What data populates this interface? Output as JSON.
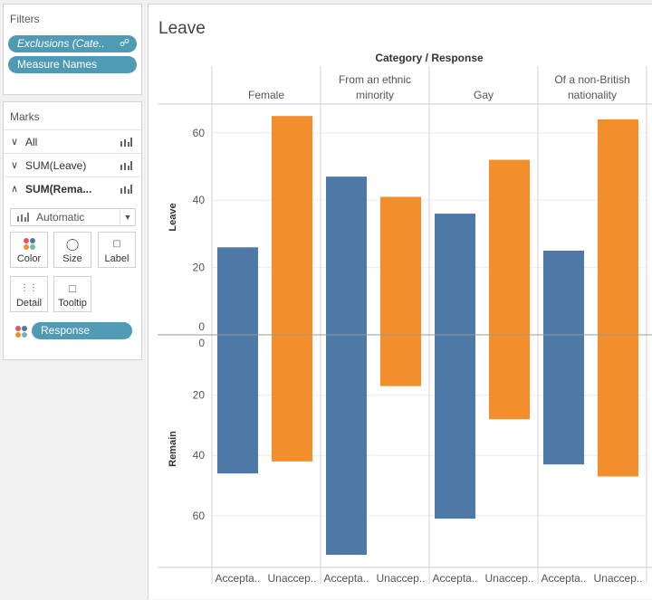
{
  "filters": {
    "title": "Filters",
    "pills": [
      {
        "label": "Exclusions (Cate..",
        "icon": "link-icon"
      },
      {
        "label": "Measure Names"
      }
    ]
  },
  "marks": {
    "title": "Marks",
    "rows": [
      {
        "label": "All",
        "expanded": false
      },
      {
        "label": "SUM(Leave)",
        "expanded": false
      },
      {
        "label": "SUM(Rema...",
        "expanded": true
      }
    ],
    "mark_type": "Automatic",
    "cards": [
      "Color",
      "Size",
      "Label",
      "Detail",
      "Tooltip"
    ],
    "color_pill": "Response"
  },
  "colors": {
    "acceptable": "#4e79a7",
    "unacceptable": "#f28e2b",
    "pill": "#4f9bb5"
  },
  "chart_data": {
    "type": "bar",
    "title": "Leave",
    "column_header": "Category / Response",
    "panes": [
      {
        "label_lines": [
          "Female"
        ]
      },
      {
        "label_lines": [
          "From an ethnic",
          "minority"
        ]
      },
      {
        "label_lines": [
          "Gay"
        ]
      },
      {
        "label_lines": [
          "Of a non-British",
          "nationality"
        ]
      }
    ],
    "x_labels": [
      "Accepta..",
      "Unaccep.."
    ],
    "leave_axis": {
      "title": "Leave",
      "range": [
        0,
        70
      ],
      "ticks": [
        "0",
        "20",
        "40",
        "60"
      ]
    },
    "remain_axis": {
      "title": "Remain",
      "range": [
        0,
        75
      ],
      "ticks": [
        "0",
        "20",
        "40",
        "60"
      ]
    },
    "series": [
      {
        "name": "Acceptable",
        "leave": [
          26,
          47,
          36,
          25
        ],
        "remain": [
          46,
          73,
          61,
          43
        ]
      },
      {
        "name": "Unacceptable",
        "leave": [
          65,
          41,
          52,
          64
        ],
        "remain": [
          42,
          17,
          28,
          47
        ]
      }
    ]
  }
}
